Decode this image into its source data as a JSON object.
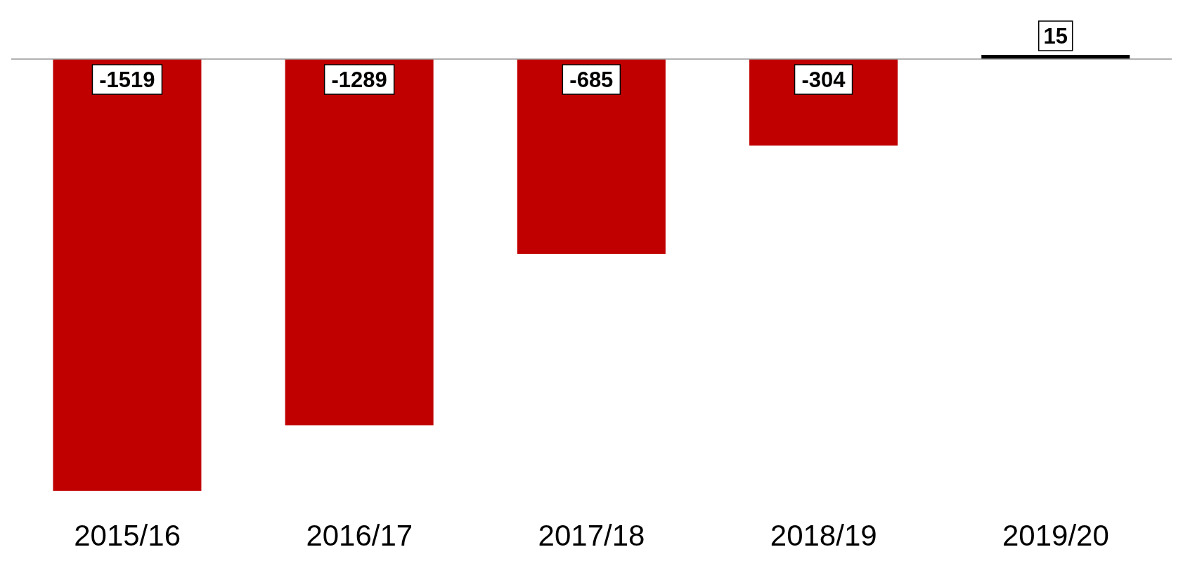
{
  "chart_data": {
    "type": "bar",
    "categories": [
      "2015/16",
      "2016/17",
      "2017/18",
      "2018/19",
      "2019/20"
    ],
    "values": [
      -1519,
      -1289,
      -685,
      -304,
      15
    ],
    "colors": [
      "#c00000",
      "#c00000",
      "#c00000",
      "#c00000",
      "#000000"
    ],
    "tick_labels": "x",
    "data_labels": true
  }
}
